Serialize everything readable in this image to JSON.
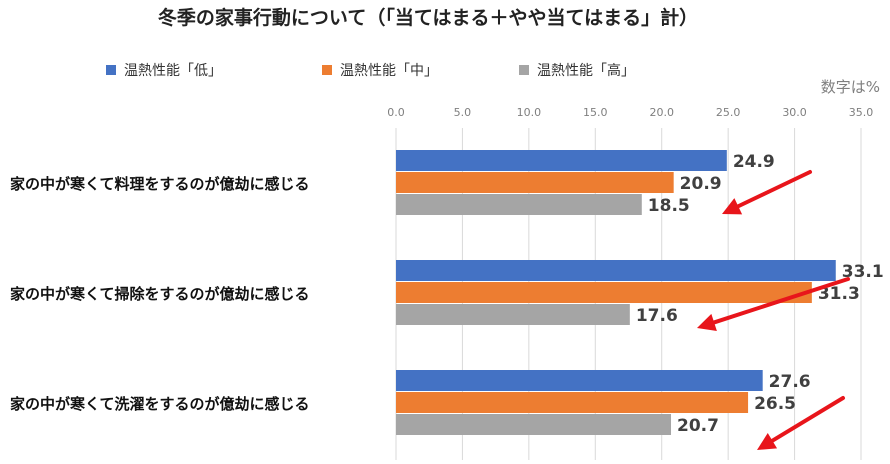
{
  "chart_data": {
    "type": "bar",
    "orientation": "horizontal",
    "title": "冬季の家事行動について（「当てはまる＋やや当てはまる」計）",
    "unit_note": "数字は%",
    "categories": [
      "家の中が寒くて料理をするのが億劫に感じる",
      "家の中が寒くて掃除をするのが億劫に感じる",
      "家の中が寒くて洗濯をするのが億劫に感じる"
    ],
    "series": [
      {
        "name": "温熱性能「低」",
        "color": "#4472c4",
        "values": [
          24.9,
          33.1,
          27.6
        ]
      },
      {
        "name": "温熱性能「中」",
        "color": "#ed7d31",
        "values": [
          20.9,
          31.3,
          26.5
        ]
      },
      {
        "name": "温熱性能「高」",
        "color": "#a5a5a5",
        "values": [
          18.5,
          17.6,
          20.7
        ]
      }
    ],
    "value_labels": [
      [
        "24.9",
        "20.9",
        "18.5"
      ],
      [
        "33.1",
        "31.3",
        "17.6"
      ],
      [
        "27.6",
        "26.5",
        "20.7"
      ]
    ],
    "x_ticks": [
      "0.0",
      "5.0",
      "10.0",
      "15.0",
      "20.0",
      "25.0",
      "30.0",
      "35.0"
    ],
    "xlim": [
      0,
      35
    ],
    "grid": true,
    "legend_position": "top",
    "annotation": "red arrows pointing down-left toward each 温熱性能「高」 bar",
    "arrow_color": "#e8151b"
  }
}
